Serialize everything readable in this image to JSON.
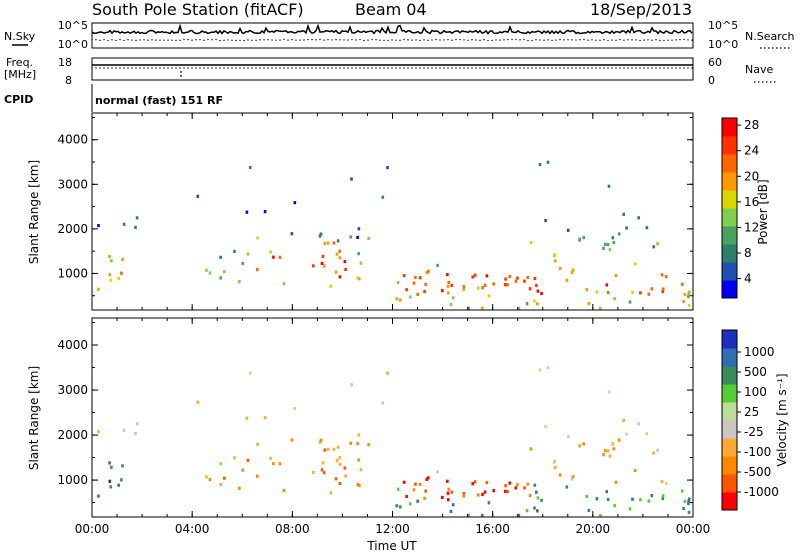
{
  "header": {
    "station": "South Pole Station (fitACF)",
    "beam": "Beam 04",
    "date": "18/Sep/2013"
  },
  "aux_panels": {
    "nsky_label": "N.Sky",
    "nsearch_label": "N.Search",
    "freq_label_1": "Freq.",
    "freq_label_2": "[MHz]",
    "nave_label": "Nave",
    "cpid_label": "CPID",
    "cpid_text": "normal (fast) 151 RF",
    "noise_ticks_left": [
      "10^5",
      "10^0"
    ],
    "noise_ticks_right": [
      "10^5",
      "10^0"
    ],
    "freq_ticks": [
      "18",
      "8"
    ],
    "nave_ticks": [
      "60",
      "0"
    ]
  },
  "colors": {
    "power": [
      "#0000ee",
      "#1f4fb0",
      "#2e7f6a",
      "#4ca060",
      "#7fd04f",
      "#d8d800",
      "#ff9900",
      "#ff6600",
      "#ff3300",
      "#ff0000"
    ],
    "velocity": [
      "#ff0000",
      "#ff5500",
      "#ff8800",
      "#ffaa33",
      "#c8c8c0",
      "#bbdd99",
      "#55cc33",
      "#3a8a5a",
      "#2f6fb0",
      "#1c2fbf"
    ]
  },
  "chart_data": [
    {
      "type": "heatmap",
      "panel": "power",
      "ylabel": "Slant Range [km]",
      "yticks": [
        "1000",
        "2000",
        "3000",
        "4000"
      ],
      "ylim": [
        180,
        4600
      ],
      "xlim": [
        0,
        24
      ],
      "xticks": [
        "00:00",
        "04:00",
        "08:00",
        "12:00",
        "16:00",
        "20:00",
        "00:00"
      ],
      "colorbar_label": "Power [dB]",
      "colorbar_ticks": [
        "4",
        "8",
        "12",
        "16",
        "20",
        "24",
        "28"
      ],
      "colorbar_range": [
        0,
        30
      ]
    },
    {
      "type": "heatmap",
      "panel": "velocity",
      "ylabel": "Slant Range [km]",
      "yticks": [
        "1000",
        "2000",
        "3000",
        "4000"
      ],
      "ylim": [
        180,
        4600
      ],
      "xlim": [
        0,
        24
      ],
      "xticks": [
        "00:00",
        "04:00",
        "08:00",
        "12:00",
        "16:00",
        "20:00",
        "00:00"
      ],
      "xlabel": "Time UT",
      "colorbar_label": "Velocity [m s⁻¹]",
      "colorbar_ticks": [
        "1000",
        "500",
        "100",
        "25",
        "-25",
        "-100",
        "-500",
        "-1000"
      ]
    }
  ]
}
